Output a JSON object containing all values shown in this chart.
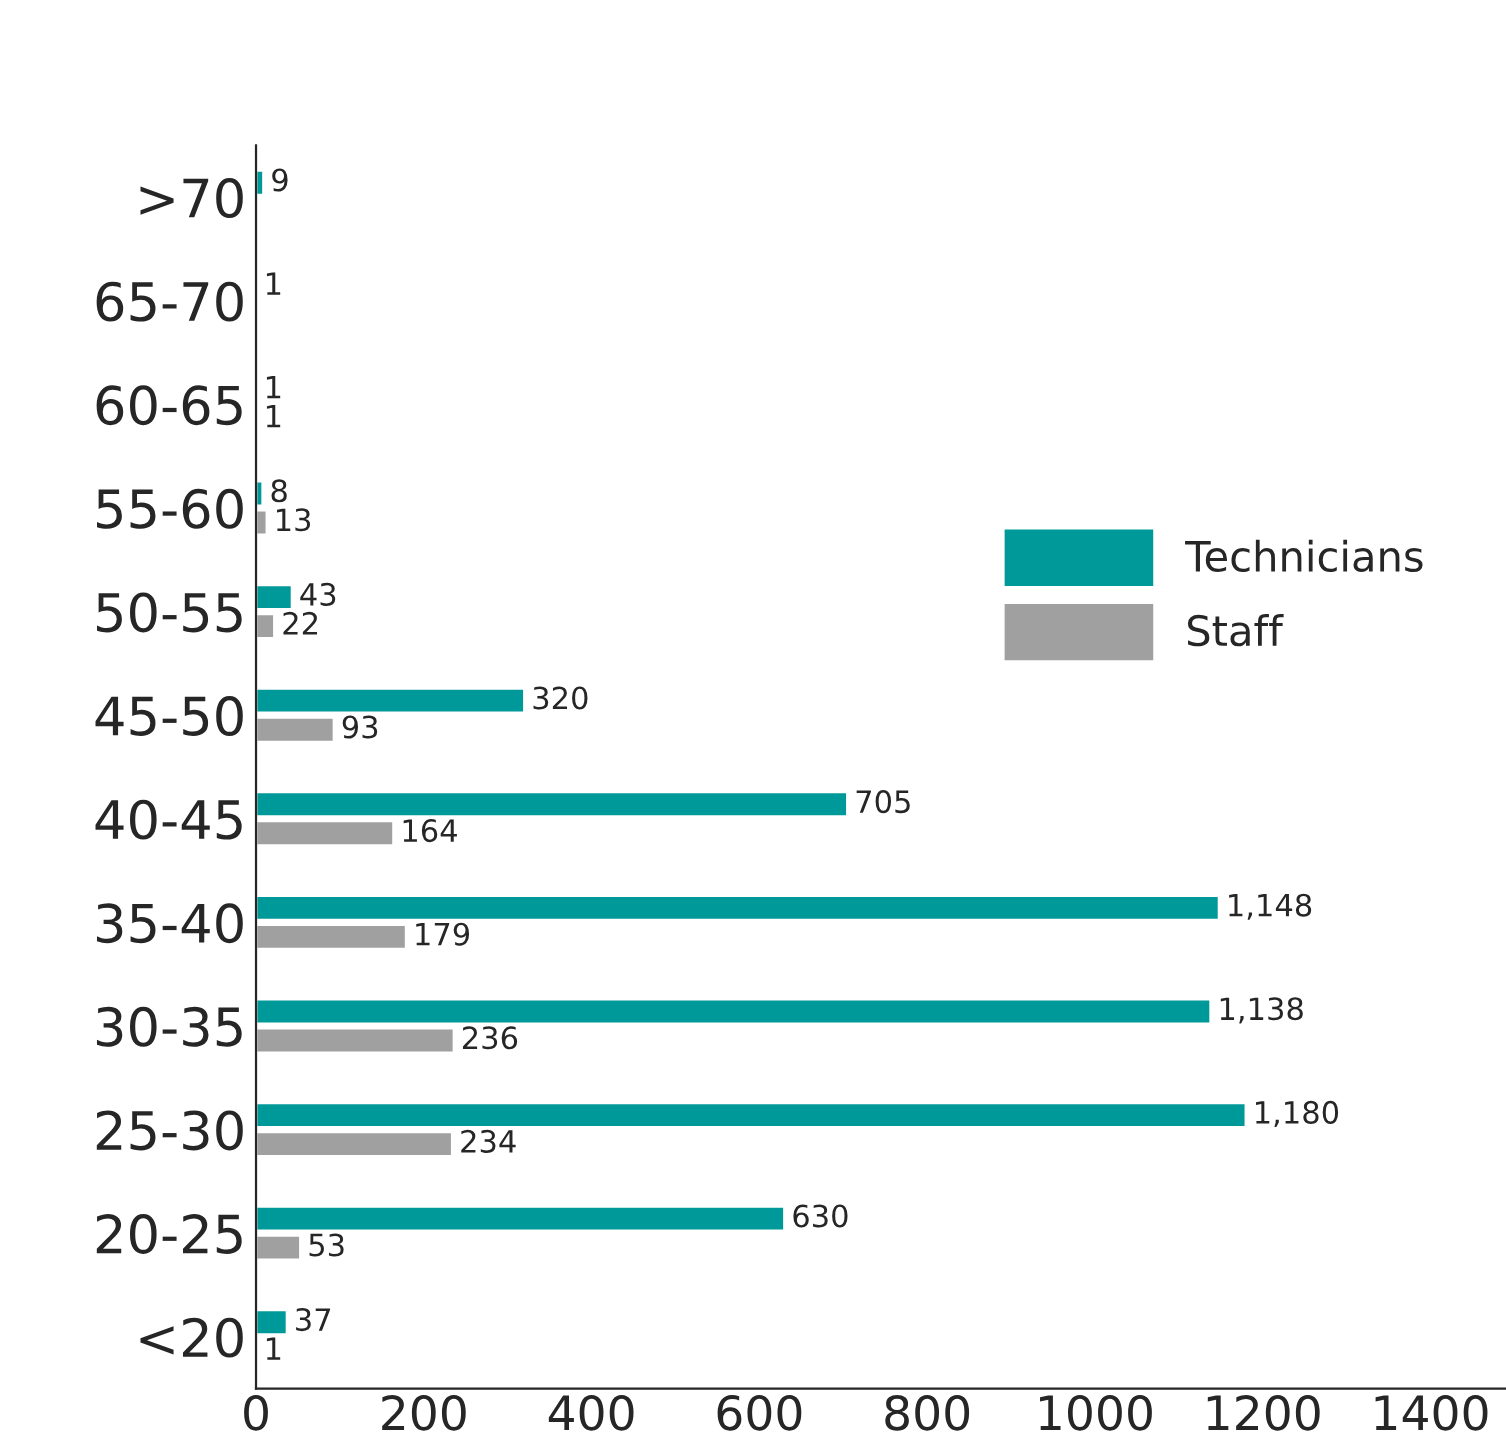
{
  "chart_data": {
    "type": "bar",
    "orientation": "horizontal",
    "categories": [
      ">70",
      "65-70",
      "60-65",
      "55-60",
      "50-55",
      "45-50",
      "40-45",
      "35-40",
      "30-35",
      "25-30",
      "20-25",
      "<20"
    ],
    "series": [
      {
        "name": "Technicians",
        "color": "#009999",
        "values": [
          9,
          1,
          1,
          8,
          43,
          320,
          705,
          1148,
          1138,
          1180,
          630,
          37
        ],
        "value_labels": [
          "9",
          "1",
          "1",
          "8",
          "43",
          "320",
          "705",
          "1,148",
          "1,138",
          "1,180",
          "630",
          "37"
        ]
      },
      {
        "name": "Staff",
        "color": "#a0a0a0",
        "values": [
          null,
          null,
          1,
          13,
          22,
          93,
          164,
          179,
          236,
          234,
          53,
          1
        ],
        "value_labels": [
          null,
          null,
          "1",
          "13",
          "22",
          "93",
          "164",
          "179",
          "236",
          "234",
          "53",
          "1"
        ]
      }
    ],
    "xlim": [
      0,
      1490
    ],
    "xticks": [
      0,
      200,
      400,
      600,
      800,
      1000,
      1200,
      1400
    ],
    "grid": false,
    "legend": "right"
  }
}
